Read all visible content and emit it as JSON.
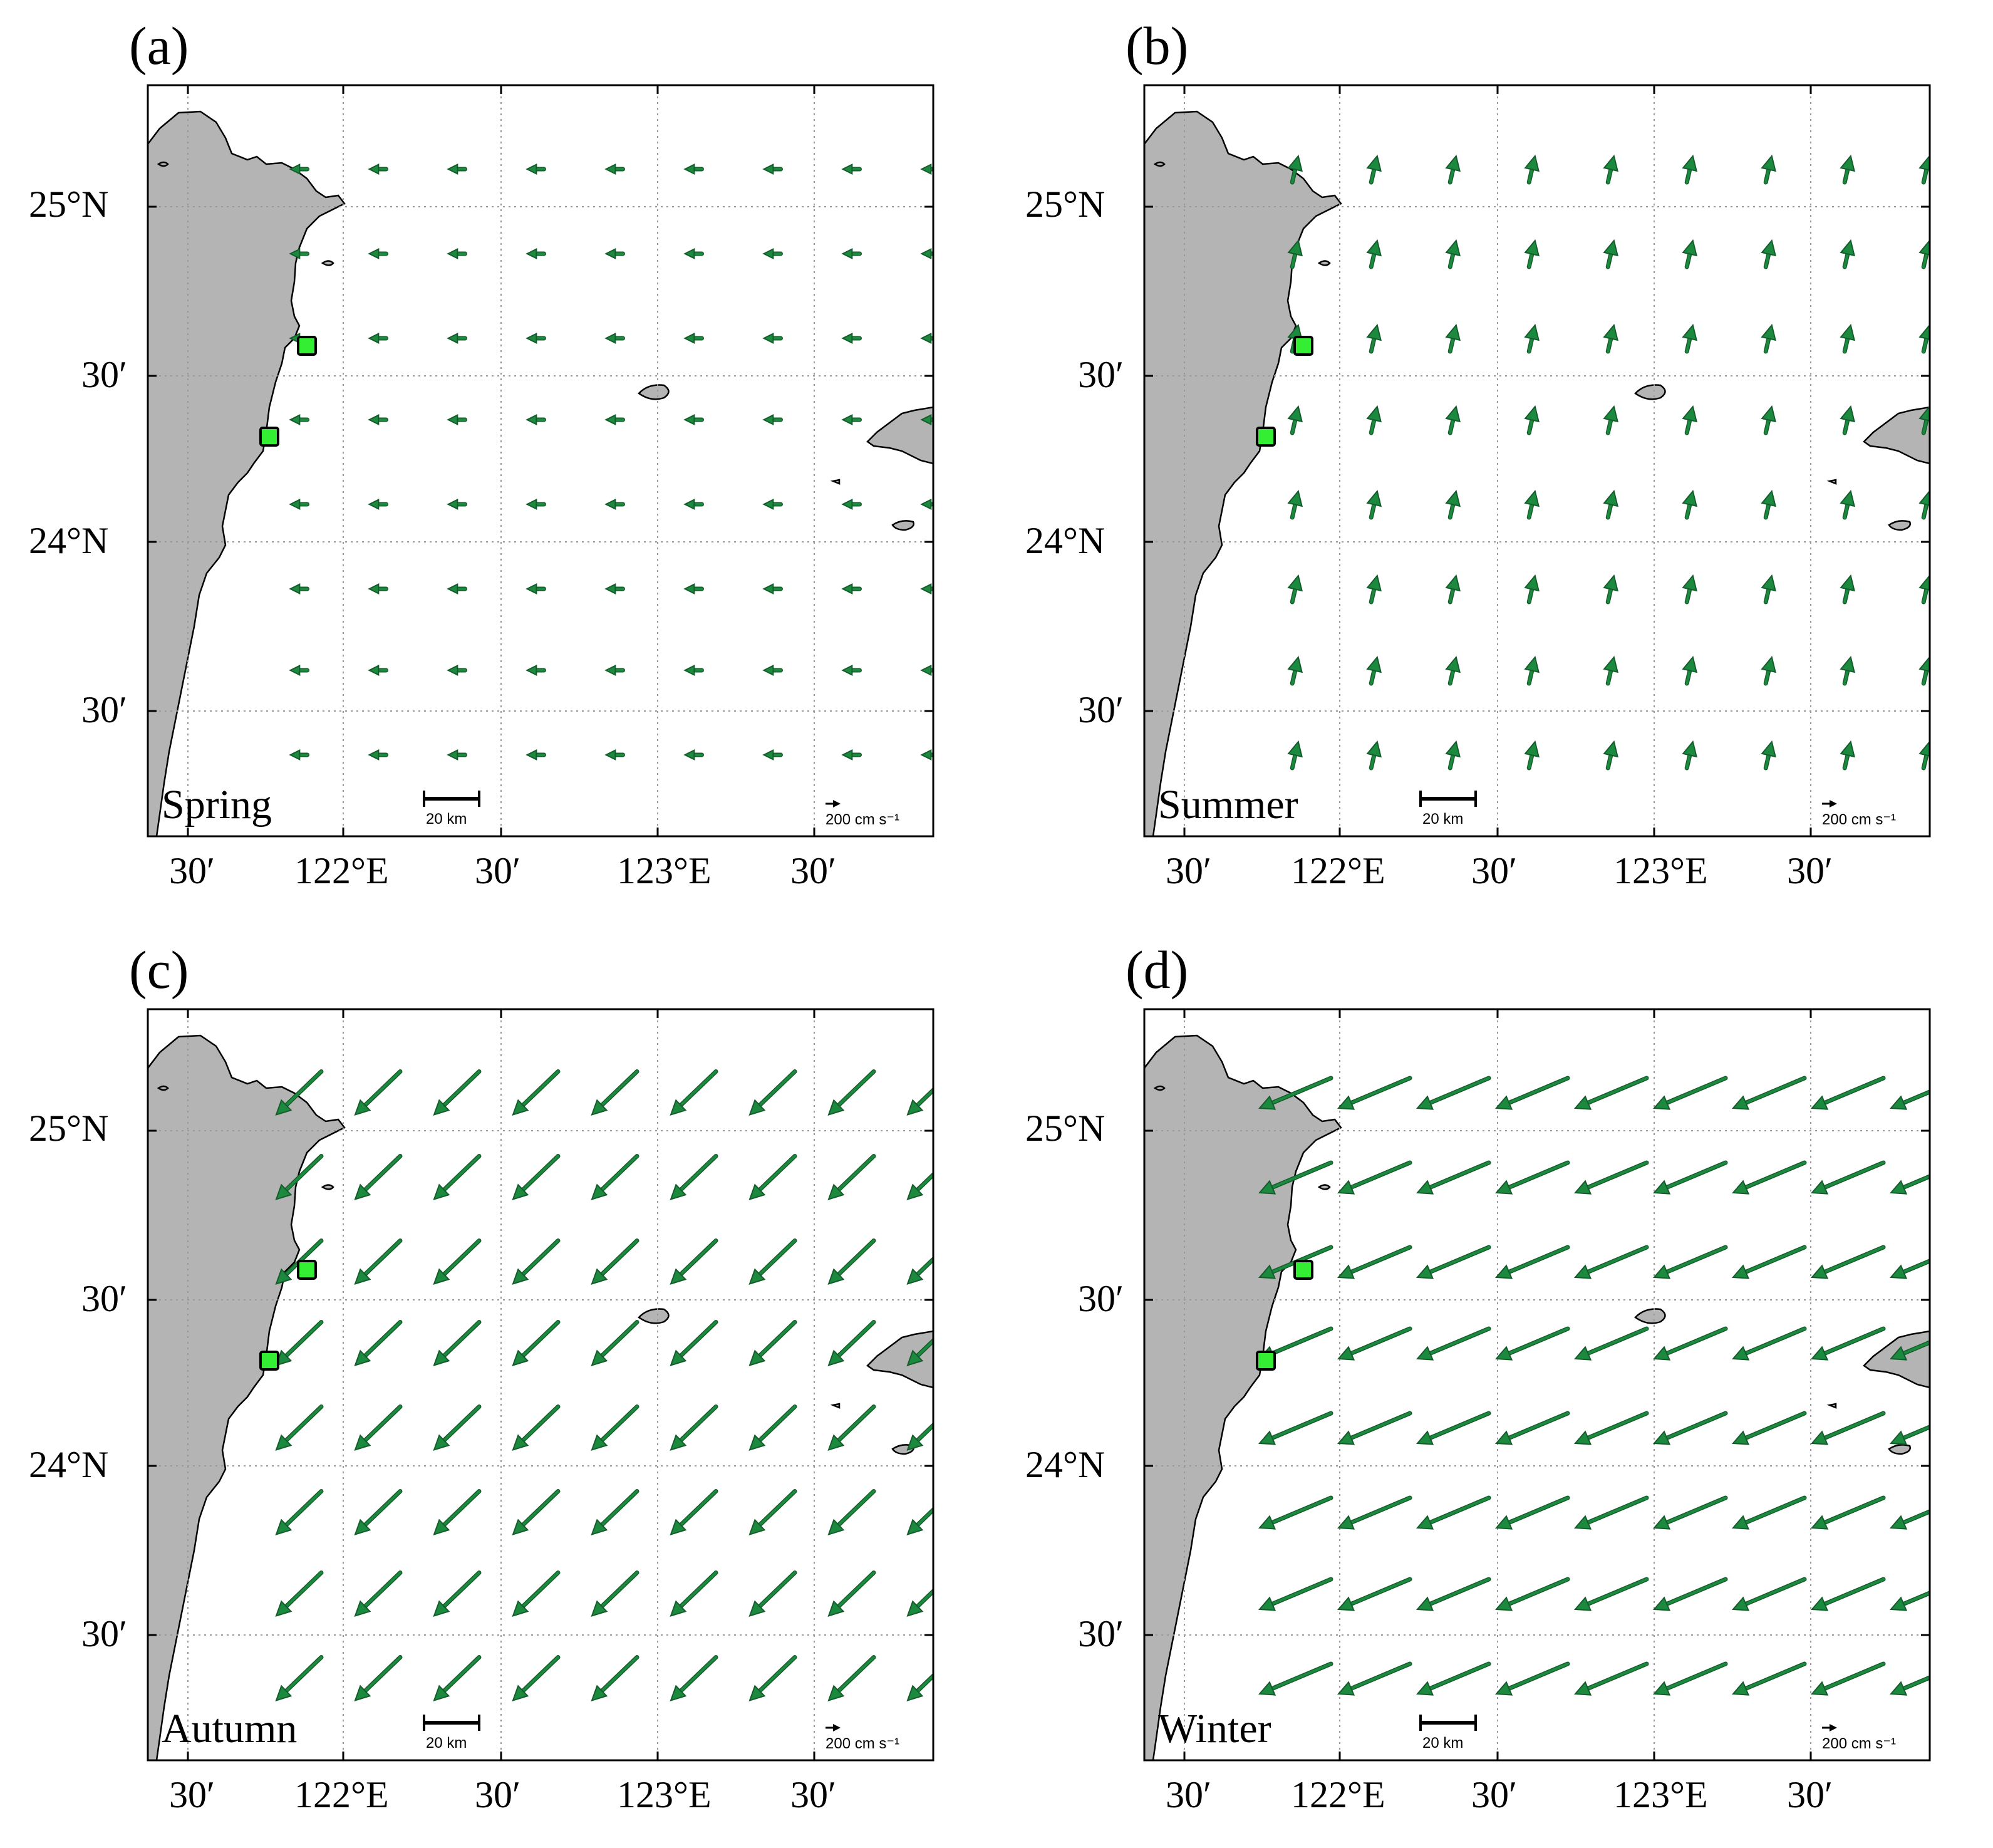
{
  "figure": {
    "scale_bar_label": "20 km",
    "reference_vector_label": "200 cm s⁻¹",
    "reference_vector_magnitude_cm_s": 200,
    "lon_tick_labels": [
      "30′",
      "122°E",
      "30′",
      "123°E",
      "30′"
    ],
    "lat_tick_labels": [
      "25°N",
      "30′",
      "24°N",
      "30′"
    ],
    "land_color": "#b4b4b4",
    "arrow_color": "#1c8a3e",
    "arrow_outline_color": "#155c2c",
    "station_color": "#33ee33",
    "grid_color": "#999999"
  },
  "panels": [
    {
      "letter": "(a)",
      "season": "Spring",
      "u_cm_s": -45,
      "v_cm_s": 0
    },
    {
      "letter": "(b)",
      "season": "Summer",
      "u_cm_s": 16,
      "v_cm_s": 70
    },
    {
      "letter": "(c)",
      "season": "Autumn",
      "u_cm_s": -120,
      "v_cm_s": -115
    },
    {
      "letter": "(d)",
      "season": "Winter",
      "u_cm_s": -190,
      "v_cm_s": -80
    }
  ]
}
